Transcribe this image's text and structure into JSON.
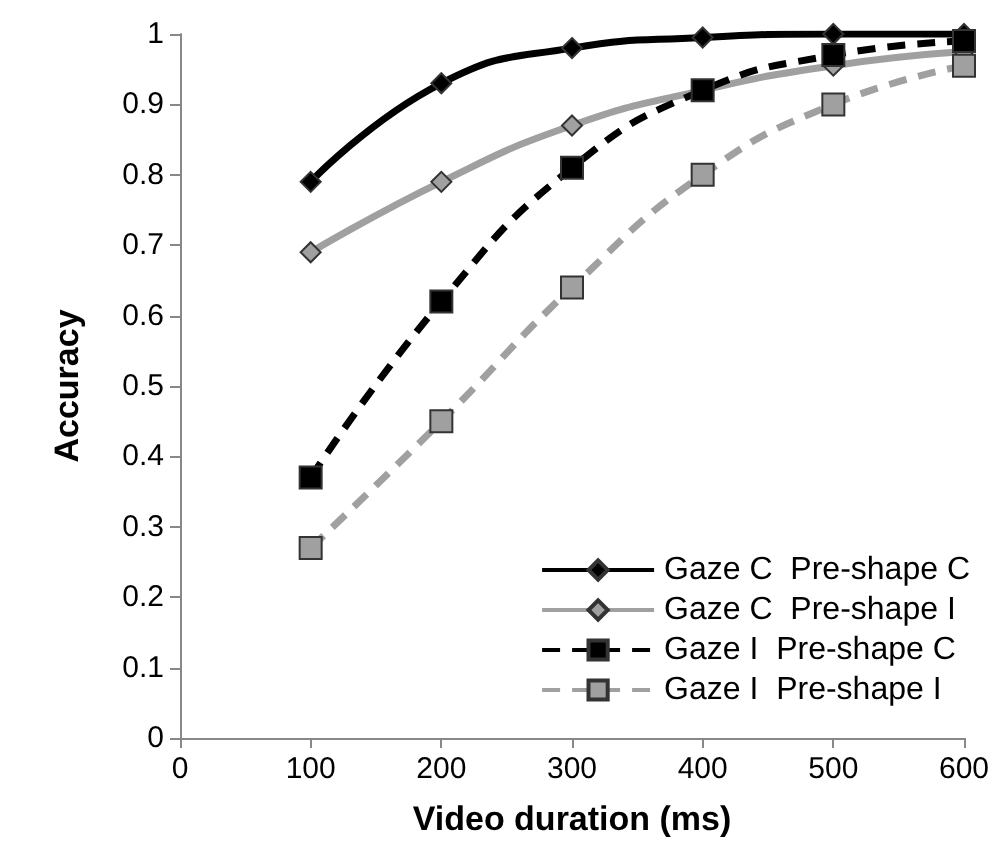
{
  "chart_data": {
    "type": "line",
    "xlabel": "Video duration (ms)",
    "ylabel": "Accuracy",
    "x": [
      100,
      200,
      300,
      400,
      500,
      600
    ],
    "series": [
      {
        "name": "Gaze C  Pre-shape C",
        "color": "#000000",
        "marker": "diamond",
        "line_style": "solid",
        "values": [
          0.79,
          0.93,
          0.98,
          0.995,
          1.0,
          1.0
        ]
      },
      {
        "name": "Gaze C  Pre-shape I",
        "color": "#a0a0a0",
        "marker": "diamond",
        "line_style": "solid",
        "values": [
          0.69,
          0.79,
          0.87,
          0.92,
          0.955,
          0.975
        ]
      },
      {
        "name": "Gaze I  Pre-shape C",
        "color": "#000000",
        "marker": "square",
        "line_style": "dashed",
        "values": [
          0.37,
          0.62,
          0.81,
          0.92,
          0.97,
          0.99
        ]
      },
      {
        "name": "Gaze I  Pre-shape I",
        "color": "#a0a0a0",
        "marker": "square",
        "line_style": "dashed",
        "values": [
          0.27,
          0.45,
          0.64,
          0.8,
          0.9,
          0.955
        ]
      }
    ],
    "xlim": [
      0,
      600
    ],
    "xticks": [
      0,
      100,
      200,
      300,
      400,
      500,
      600
    ],
    "ylim": [
      0,
      1
    ],
    "yticks": [
      0,
      0.1,
      0.2,
      0.3,
      0.4,
      0.5,
      0.6,
      0.7,
      0.8,
      0.9,
      1
    ],
    "grid": false,
    "legend": "bottom right"
  }
}
